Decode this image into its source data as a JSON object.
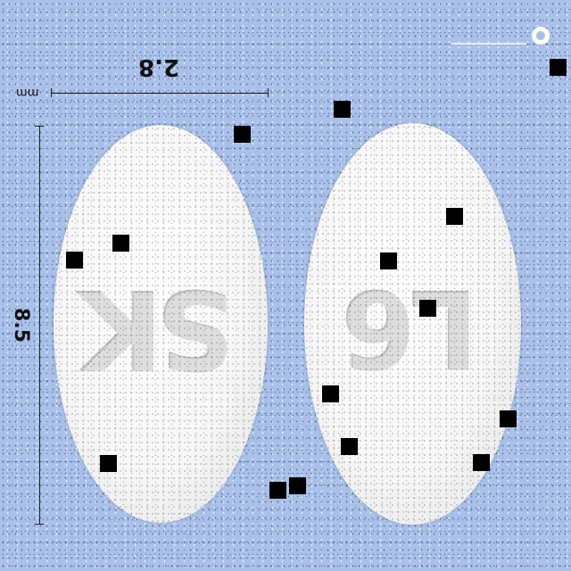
{
  "measurements": {
    "width_label": "2.8",
    "height_label": "8.5",
    "unit_label": "mm"
  },
  "pills": {
    "left": {
      "imprint": "SK"
    },
    "right": {
      "imprint": "L6"
    }
  },
  "colors": {
    "background": "#a9c1ea",
    "pill": "#f7f7f7"
  }
}
